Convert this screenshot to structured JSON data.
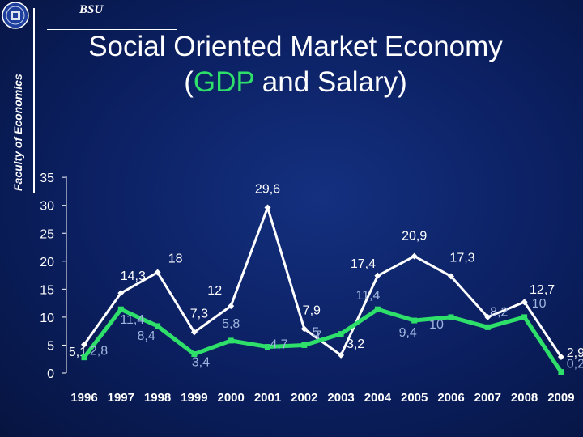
{
  "header": {
    "institution": "BSU",
    "faculty": "Faculty of Economics",
    "title_line1": "Social Oriented Market Economy",
    "title_line2_open": "(",
    "title_line2_highlight": "GDP",
    "title_line2_rest": " and Salary)"
  },
  "colors": {
    "salary_line": "#ffffff",
    "gdp_line": "#2ee06a",
    "salary_label": "#ffffff",
    "gdp_label": "#9fb4de",
    "axis": "#ffffff",
    "background": "#0b1f60"
  },
  "chart_data": {
    "type": "line",
    "categories": [
      "1996",
      "1997",
      "1998",
      "1999",
      "2000",
      "2001",
      "2002",
      "2003",
      "2004",
      "2005",
      "2006",
      "2007",
      "2008",
      "2009"
    ],
    "ylim": [
      0,
      35
    ],
    "yticks": [
      "0",
      "5",
      "10",
      "15",
      "20",
      "25",
      "30",
      "35"
    ],
    "grid": false,
    "series": [
      {
        "key": "salary",
        "values": [
          5.1,
          14.3,
          18,
          7.3,
          12,
          29.6,
          7.9,
          3.2,
          17.4,
          20.9,
          17.3,
          10,
          12.7,
          2.9
        ],
        "labels": [
          "5,1",
          "14,3",
          "18",
          "7,3",
          "12",
          "29,6",
          "7,9",
          "3,2",
          "17,4",
          "20,9",
          "17,3",
          "",
          "12,7",
          "2,9"
        ]
      },
      {
        "key": "gdp",
        "values": [
          2.8,
          11.4,
          8.4,
          3.4,
          5.8,
          4.7,
          5,
          7,
          11.4,
          9.4,
          10,
          8.2,
          10,
          0.2
        ],
        "labels": [
          "2,8",
          "11,4",
          "8,4",
          "3,4",
          "5,8",
          "4,7",
          "5",
          "7",
          "11,4",
          "9,4",
          "10",
          "8,2",
          "10",
          "0,2"
        ]
      }
    ]
  }
}
